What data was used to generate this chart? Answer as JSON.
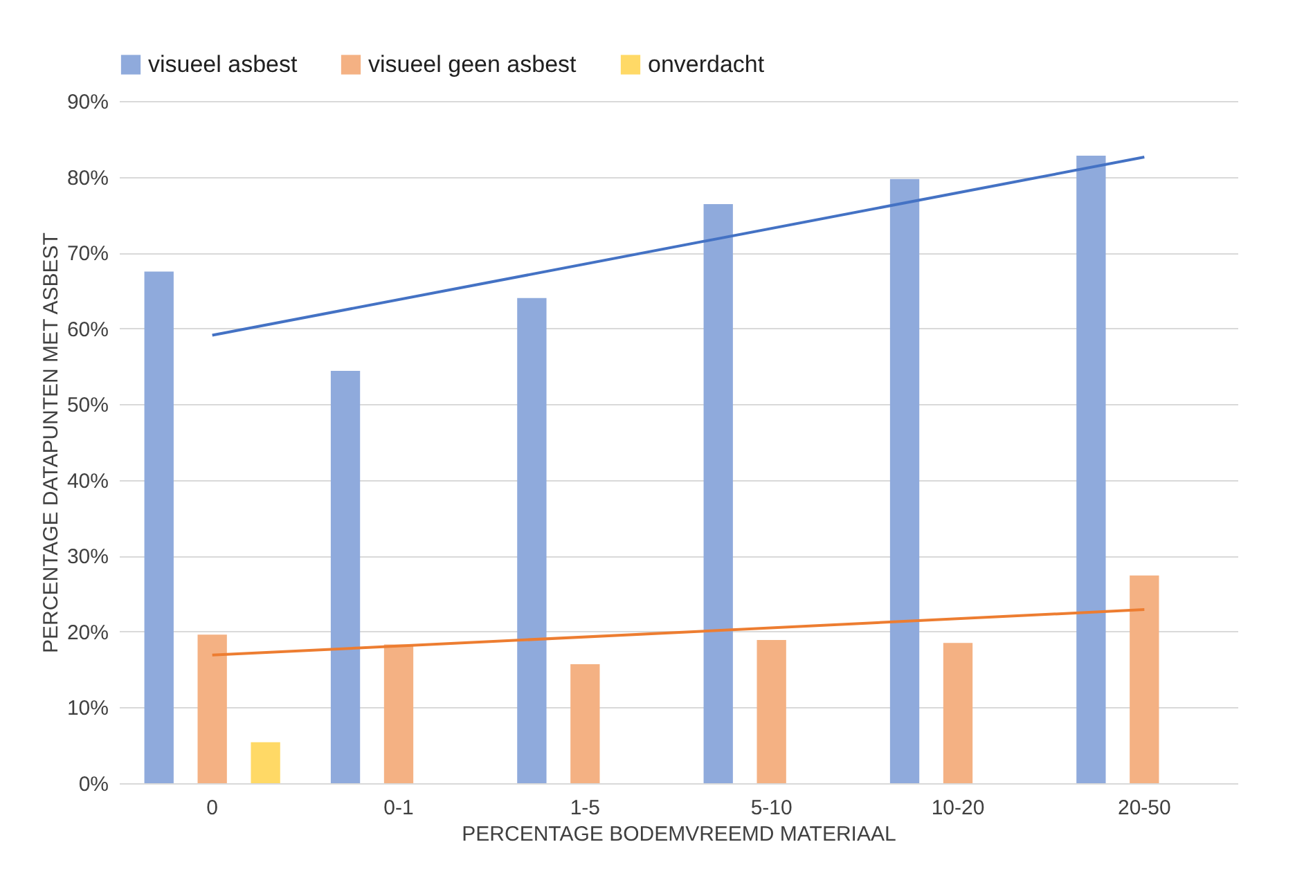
{
  "chart_data": {
    "type": "bar",
    "xlabel": "PERCENTAGE BODEMVREEMD MATERIAAL",
    "ylabel": "PERCENTAGE DATAPUNTEN MET ASBEST",
    "categories": [
      "0",
      "0-1",
      "1-5",
      "5-10",
      "10-20",
      "20-50"
    ],
    "series": [
      {
        "name": "visueel asbest",
        "color": "#8faadc",
        "values": [
          67.5,
          54.4,
          64.0,
          76.4,
          79.7,
          82.8
        ]
      },
      {
        "name": "visueel geen asbest",
        "color": "#f4b183",
        "values": [
          19.6,
          18.3,
          15.7,
          18.9,
          18.5,
          27.4
        ]
      },
      {
        "name": "onverdacht",
        "color": "#ffd966",
        "values": [
          5.4,
          null,
          null,
          null,
          null,
          null
        ]
      },
      {
        "type": "line",
        "color": "#4472c4",
        "x": [
          "0",
          "20-50"
        ],
        "values": [
          59.1,
          82.6
        ]
      },
      {
        "type": "line",
        "color": "#ed7d31",
        "x": [
          "0",
          "20-50"
        ],
        "values": [
          16.9,
          22.9
        ]
      }
    ],
    "ylim": [
      0,
      90
    ],
    "yticks": [
      {
        "value": 0,
        "label": "0%"
      },
      {
        "value": 10,
        "label": "10%"
      },
      {
        "value": 20,
        "label": "20%"
      },
      {
        "value": 30,
        "label": "30%"
      },
      {
        "value": 40,
        "label": "40%"
      },
      {
        "value": 50,
        "label": "50%"
      },
      {
        "value": 60,
        "label": "60%"
      },
      {
        "value": 70,
        "label": "70%"
      },
      {
        "value": 80,
        "label": "80%"
      },
      {
        "value": 90,
        "label": "90%"
      }
    ],
    "grid": "y",
    "legend": "top"
  }
}
